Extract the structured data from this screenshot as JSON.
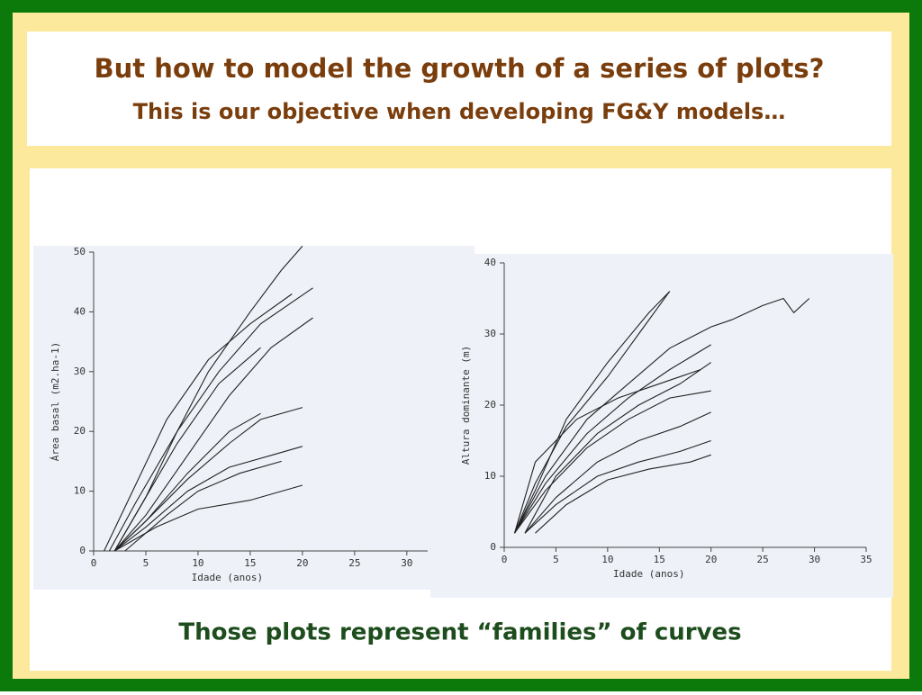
{
  "slide": {
    "title": "But how to model the growth of a series of plots?",
    "subtitle": "This is our objective when developing FG&Y models…",
    "caption": "Those plots represent “families” of  curves"
  },
  "chart_data": [
    {
      "type": "line",
      "x_label": "Idade (anos)",
      "y_label": "Área basal (m2.ha-1)",
      "xlim": [
        0,
        32
      ],
      "ylim": [
        0,
        50
      ],
      "xticks": [
        0,
        5,
        10,
        15,
        20,
        25,
        30
      ],
      "yticks": [
        0,
        10,
        20,
        30,
        40,
        50
      ],
      "series": [
        {
          "color": "#222222",
          "x": [
            2,
            5,
            8,
            11,
            15,
            18,
            20
          ],
          "values": [
            0,
            9,
            20,
            30,
            40,
            47,
            51
          ]
        },
        {
          "color": "#222222",
          "x": [
            1.5,
            4,
            8,
            12,
            16,
            21
          ],
          "values": [
            0,
            8,
            20,
            30,
            38,
            44
          ]
        },
        {
          "color": "#222222",
          "x": [
            2,
            5,
            9,
            13,
            17,
            21
          ],
          "values": [
            0,
            6,
            16,
            26,
            34,
            39
          ]
        },
        {
          "color": "#222222",
          "x": [
            2,
            5,
            9,
            13,
            16,
            20
          ],
          "values": [
            0,
            5,
            12,
            18,
            22,
            24
          ]
        },
        {
          "color": "#222222",
          "x": [
            2,
            5,
            9,
            13,
            17,
            20
          ],
          "values": [
            0,
            4,
            10,
            14,
            16,
            17.5
          ]
        },
        {
          "color": "#222222",
          "x": [
            2,
            6,
            10,
            15,
            20
          ],
          "values": [
            0,
            4,
            7,
            8.5,
            11
          ]
        },
        {
          "color": "#222222",
          "x": [
            2,
            5,
            8,
            12,
            16
          ],
          "values": [
            0,
            9,
            18,
            28,
            34
          ]
        },
        {
          "color": "#222222",
          "x": [
            2,
            5,
            9,
            13,
            16
          ],
          "values": [
            0,
            5,
            13,
            20,
            23
          ]
        },
        {
          "color": "#222222",
          "x": [
            3,
            7,
            10,
            14,
            18
          ],
          "values": [
            0,
            6,
            10,
            13,
            15
          ]
        },
        {
          "color": "#222222",
          "x": [
            1,
            4,
            7,
            11,
            15,
            19
          ],
          "values": [
            0,
            11,
            22,
            32,
            38,
            43
          ]
        }
      ]
    },
    {
      "type": "line",
      "x_label": "Idade (anos)",
      "y_label": "Altura dominante (m)",
      "xlim": [
        0,
        35
      ],
      "ylim": [
        0,
        40
      ],
      "xticks": [
        0,
        5,
        10,
        15,
        20,
        25,
        30,
        35
      ],
      "yticks": [
        0,
        10,
        20,
        30,
        40
      ],
      "series": [
        {
          "color": "#222222",
          "x": [
            1,
            3,
            6,
            10,
            14,
            16
          ],
          "values": [
            2,
            8,
            18,
            26,
            33,
            36
          ]
        },
        {
          "color": "#222222",
          "x": [
            1,
            4,
            8,
            12,
            16,
            20,
            22,
            25,
            27,
            28,
            29.5
          ],
          "values": [
            2,
            10,
            18,
            23,
            28,
            31,
            32,
            34,
            35,
            33,
            35
          ]
        },
        {
          "color": "#222222",
          "x": [
            1,
            4,
            8,
            12,
            16,
            20
          ],
          "values": [
            2,
            9,
            16,
            21,
            25,
            28.5
          ]
        },
        {
          "color": "#222222",
          "x": [
            1,
            4,
            8,
            12,
            16,
            20
          ],
          "values": [
            2,
            8,
            14,
            18,
            21,
            22
          ]
        },
        {
          "color": "#222222",
          "x": [
            2,
            5,
            9,
            13,
            17,
            20
          ],
          "values": [
            2,
            7,
            12,
            15,
            17,
            19
          ]
        },
        {
          "color": "#222222",
          "x": [
            2,
            5,
            9,
            13,
            17,
            20
          ],
          "values": [
            2,
            6,
            10,
            12,
            13.5,
            15
          ]
        },
        {
          "color": "#222222",
          "x": [
            3,
            6,
            10,
            14,
            18,
            20
          ],
          "values": [
            2,
            6,
            9.5,
            11,
            12,
            13
          ]
        },
        {
          "color": "#222222",
          "x": [
            1,
            3,
            6,
            10,
            13,
            16
          ],
          "values": [
            2,
            9,
            17,
            24,
            30,
            36
          ]
        },
        {
          "color": "#222222",
          "x": [
            2,
            5,
            9,
            13,
            17,
            20
          ],
          "values": [
            2,
            10,
            16,
            20,
            23,
            26
          ]
        },
        {
          "color": "#222222",
          "x": [
            1,
            3,
            7,
            11,
            15,
            19
          ],
          "values": [
            2,
            12,
            18,
            21,
            23,
            25
          ]
        }
      ]
    }
  ]
}
